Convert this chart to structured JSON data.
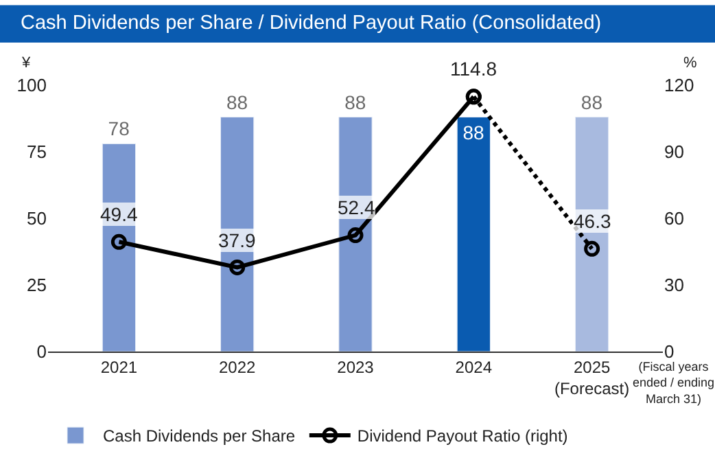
{
  "chart_data": {
    "type": "bar",
    "title": "Cash Dividends per Share / Dividend Payout Ratio (Consolidated)",
    "ylabel": "¥",
    "y2label": "%",
    "categories": [
      "2021",
      "2022",
      "2023",
      "2024",
      "2025\n(Forecast)"
    ],
    "series": [
      {
        "name": "Cash Dividends per Share",
        "colors": [
          "#7a97d0",
          "#7a97d0",
          "#7a97d0",
          "#0a5bb0",
          "#a8badf"
        ],
        "color": "#7a97d0",
        "values": [
          78,
          88,
          88,
          88,
          88
        ],
        "data_labels": true
      },
      {
        "name": "Dividend Payout Ratio (right)",
        "type": "line",
        "axis": "y2",
        "color": "#000000",
        "line_style": "solid",
        "values": [
          49.4,
          37.9,
          52.4,
          114.8,
          null
        ],
        "data_labels": true
      },
      {
        "type": "line",
        "axis": "y2",
        "color": "#000000",
        "line_style": "dotted",
        "values": [
          null,
          null,
          null,
          114.8,
          46.3
        ],
        "value_labels": [
          null,
          null,
          null,
          null,
          "46.3"
        ]
      }
    ],
    "ylim": [
      0,
      100
    ],
    "yticks": [
      0,
      25,
      50,
      75,
      100
    ],
    "y2lim": [
      0,
      120
    ],
    "y2ticks": [
      0,
      30,
      60,
      90,
      120
    ],
    "marker": "circle",
    "legend": "bottom",
    "annotations": [
      "(Fiscal years\nended / ending\nMarch 31)"
    ]
  }
}
